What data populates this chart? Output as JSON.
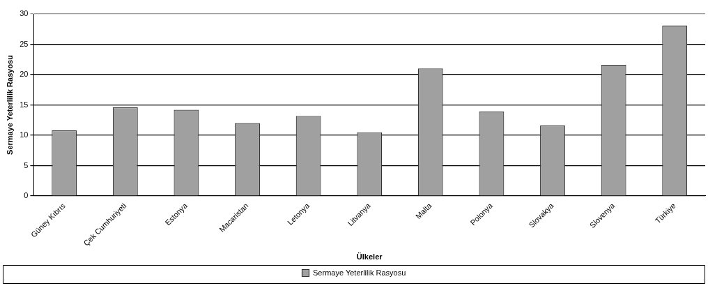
{
  "chart_data": {
    "type": "bar",
    "xlabel": "Ülkeler",
    "ylabel": "Sermaye Yeterlilik Rasyosu",
    "categories": [
      "Güney Kıbrıs",
      "Çek Cumhuriyeti",
      "Estonya",
      "Macaristan",
      "Letonya",
      "Litvanya",
      "Malta",
      "Polonya",
      "Slovakya",
      "Slovenya",
      "Türkiye"
    ],
    "series": [
      {
        "name": "Sermaye Yeterlilik Rasyosu",
        "color": "#a0a0a0",
        "values": [
          10.8,
          14.6,
          14.2,
          12.0,
          13.2,
          10.5,
          21.0,
          13.9,
          11.6,
          21.6,
          28.1
        ]
      }
    ],
    "ylim": [
      0,
      30
    ],
    "yticks": [
      0,
      5,
      10,
      15,
      20,
      25,
      30
    ],
    "grid": "y",
    "legend": "bottom"
  }
}
